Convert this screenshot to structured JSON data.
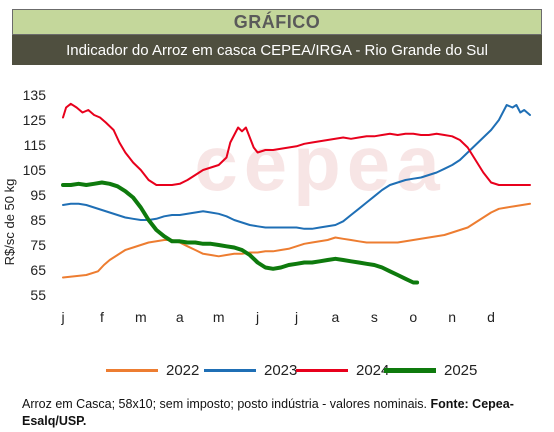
{
  "header": {
    "title": "GRÁFICO",
    "subtitle": "Indicador do Arroz em casca CEPEA/IRGA - Rio Grande do Sul"
  },
  "watermark": "cepea",
  "chart_data": {
    "type": "line",
    "ylabel": "R$/sc de 50 kg",
    "xlabel": "",
    "ylim": [
      55,
      135
    ],
    "xlim": [
      0,
      12
    ],
    "yticks": [
      135,
      125,
      115,
      105,
      95,
      85,
      75,
      65,
      55
    ],
    "x_tick_labels": [
      "j",
      "f",
      "m",
      "a",
      "m",
      "j",
      "j",
      "a",
      "s",
      "o",
      "n",
      "d"
    ],
    "grid": false,
    "legend_position": "bottom",
    "series": [
      {
        "name": "2022",
        "color": "#ed7d31",
        "width": 2,
        "points": [
          [
            0,
            62
          ],
          [
            0.3,
            62.5
          ],
          [
            0.6,
            63
          ],
          [
            0.9,
            64.5
          ],
          [
            1.05,
            67
          ],
          [
            1.2,
            69
          ],
          [
            1.4,
            71
          ],
          [
            1.6,
            73
          ],
          [
            1.8,
            74
          ],
          [
            2.0,
            75
          ],
          [
            2.2,
            76
          ],
          [
            2.4,
            76.5
          ],
          [
            2.6,
            77
          ],
          [
            2.8,
            77
          ],
          [
            3.0,
            76
          ],
          [
            3.2,
            74.5
          ],
          [
            3.4,
            73
          ],
          [
            3.6,
            71.5
          ],
          [
            3.8,
            71
          ],
          [
            4.0,
            70.5
          ],
          [
            4.2,
            71
          ],
          [
            4.4,
            71.5
          ],
          [
            4.6,
            71.5
          ],
          [
            4.8,
            72
          ],
          [
            5.0,
            72
          ],
          [
            5.2,
            72.5
          ],
          [
            5.4,
            72.5
          ],
          [
            5.6,
            73
          ],
          [
            5.8,
            73.5
          ],
          [
            6.0,
            74.5
          ],
          [
            6.2,
            75.5
          ],
          [
            6.4,
            76
          ],
          [
            6.6,
            76.5
          ],
          [
            6.8,
            77
          ],
          [
            7.0,
            78
          ],
          [
            7.2,
            77.5
          ],
          [
            7.4,
            77
          ],
          [
            7.6,
            76.5
          ],
          [
            7.8,
            76
          ],
          [
            8.0,
            76
          ],
          [
            8.2,
            76
          ],
          [
            8.4,
            76
          ],
          [
            8.6,
            76
          ],
          [
            8.8,
            76.5
          ],
          [
            9.0,
            77
          ],
          [
            9.2,
            77.5
          ],
          [
            9.4,
            78
          ],
          [
            9.6,
            78.5
          ],
          [
            9.8,
            79
          ],
          [
            10.0,
            80
          ],
          [
            10.2,
            81
          ],
          [
            10.4,
            82
          ],
          [
            10.6,
            84
          ],
          [
            10.8,
            86
          ],
          [
            11.0,
            88
          ],
          [
            11.2,
            89.5
          ],
          [
            11.4,
            90
          ],
          [
            11.6,
            90.5
          ],
          [
            11.8,
            91
          ],
          [
            12.0,
            91.5
          ]
        ]
      },
      {
        "name": "2023",
        "color": "#1f6fb5",
        "width": 2,
        "points": [
          [
            0,
            91
          ],
          [
            0.2,
            91.5
          ],
          [
            0.4,
            91.5
          ],
          [
            0.6,
            91
          ],
          [
            0.8,
            90
          ],
          [
            1.0,
            89
          ],
          [
            1.2,
            88
          ],
          [
            1.4,
            87
          ],
          [
            1.6,
            86
          ],
          [
            1.8,
            85.5
          ],
          [
            2.0,
            85
          ],
          [
            2.2,
            85
          ],
          [
            2.4,
            85.5
          ],
          [
            2.6,
            86.5
          ],
          [
            2.8,
            87
          ],
          [
            3.0,
            87
          ],
          [
            3.2,
            87.5
          ],
          [
            3.4,
            88
          ],
          [
            3.6,
            88.5
          ],
          [
            3.8,
            88
          ],
          [
            4.0,
            87.5
          ],
          [
            4.2,
            86.5
          ],
          [
            4.4,
            85
          ],
          [
            4.6,
            84
          ],
          [
            4.8,
            83
          ],
          [
            5.0,
            82.5
          ],
          [
            5.2,
            82
          ],
          [
            5.4,
            82
          ],
          [
            5.6,
            82
          ],
          [
            5.8,
            82
          ],
          [
            6.0,
            82
          ],
          [
            6.2,
            81.5
          ],
          [
            6.4,
            81.5
          ],
          [
            6.6,
            82
          ],
          [
            6.8,
            82.5
          ],
          [
            7.0,
            83
          ],
          [
            7.2,
            84.5
          ],
          [
            7.4,
            87
          ],
          [
            7.6,
            89.5
          ],
          [
            7.8,
            92
          ],
          [
            8.0,
            94.5
          ],
          [
            8.2,
            97
          ],
          [
            8.4,
            99
          ],
          [
            8.6,
            100
          ],
          [
            8.8,
            101
          ],
          [
            9.0,
            101.5
          ],
          [
            9.2,
            102
          ],
          [
            9.4,
            103
          ],
          [
            9.6,
            104
          ],
          [
            9.8,
            105.5
          ],
          [
            10.0,
            107
          ],
          [
            10.2,
            109
          ],
          [
            10.4,
            112
          ],
          [
            10.6,
            115
          ],
          [
            10.8,
            118
          ],
          [
            11.0,
            121
          ],
          [
            11.2,
            125
          ],
          [
            11.4,
            131
          ],
          [
            11.55,
            130
          ],
          [
            11.65,
            131
          ],
          [
            11.75,
            128
          ],
          [
            11.85,
            129
          ],
          [
            12.0,
            127
          ]
        ]
      },
      {
        "name": "2024",
        "color": "#e8001c",
        "width": 2,
        "points": [
          [
            0,
            126
          ],
          [
            0.08,
            130
          ],
          [
            0.2,
            131.5
          ],
          [
            0.35,
            130
          ],
          [
            0.5,
            128
          ],
          [
            0.65,
            129
          ],
          [
            0.8,
            127
          ],
          [
            0.95,
            126
          ],
          [
            1.1,
            124
          ],
          [
            1.3,
            121
          ],
          [
            1.45,
            116
          ],
          [
            1.6,
            112
          ],
          [
            1.8,
            108
          ],
          [
            2.0,
            105
          ],
          [
            2.2,
            101
          ],
          [
            2.4,
            99
          ],
          [
            2.6,
            99
          ],
          [
            2.8,
            99
          ],
          [
            3.0,
            99.5
          ],
          [
            3.2,
            101
          ],
          [
            3.4,
            103
          ],
          [
            3.6,
            105
          ],
          [
            3.8,
            106
          ],
          [
            4.0,
            107
          ],
          [
            4.2,
            110
          ],
          [
            4.3,
            116
          ],
          [
            4.4,
            119
          ],
          [
            4.5,
            122
          ],
          [
            4.6,
            120.5
          ],
          [
            4.7,
            122
          ],
          [
            4.8,
            118
          ],
          [
            4.9,
            114
          ],
          [
            5.0,
            112
          ],
          [
            5.2,
            113
          ],
          [
            5.4,
            113
          ],
          [
            5.6,
            113.5
          ],
          [
            5.8,
            114
          ],
          [
            6.0,
            114.5
          ],
          [
            6.2,
            115.5
          ],
          [
            6.4,
            116
          ],
          [
            6.6,
            116.5
          ],
          [
            6.8,
            117
          ],
          [
            7.0,
            117.5
          ],
          [
            7.2,
            118
          ],
          [
            7.4,
            117.5
          ],
          [
            7.6,
            118
          ],
          [
            7.8,
            118.5
          ],
          [
            8.0,
            118.5
          ],
          [
            8.2,
            119
          ],
          [
            8.4,
            119.5
          ],
          [
            8.6,
            119
          ],
          [
            8.8,
            119.5
          ],
          [
            9.0,
            119.5
          ],
          [
            9.2,
            119
          ],
          [
            9.4,
            119
          ],
          [
            9.6,
            119.5
          ],
          [
            9.8,
            119
          ],
          [
            10.0,
            118.5
          ],
          [
            10.2,
            117
          ],
          [
            10.4,
            114
          ],
          [
            10.6,
            109
          ],
          [
            10.8,
            104
          ],
          [
            11.0,
            100
          ],
          [
            11.2,
            99
          ],
          [
            11.4,
            99
          ],
          [
            11.6,
            99
          ],
          [
            11.8,
            99
          ],
          [
            12.0,
            99
          ]
        ]
      },
      {
        "name": "2025",
        "color": "#0e7a0d",
        "width": 4,
        "points": [
          [
            0,
            99
          ],
          [
            0.2,
            99
          ],
          [
            0.4,
            99.5
          ],
          [
            0.6,
            99
          ],
          [
            0.8,
            99.5
          ],
          [
            1.0,
            100
          ],
          [
            1.2,
            99.5
          ],
          [
            1.4,
            98.5
          ],
          [
            1.6,
            96.5
          ],
          [
            1.8,
            94
          ],
          [
            2.0,
            90
          ],
          [
            2.2,
            85
          ],
          [
            2.4,
            81
          ],
          [
            2.6,
            78.5
          ],
          [
            2.8,
            76.5
          ],
          [
            3.0,
            76.5
          ],
          [
            3.2,
            76
          ],
          [
            3.4,
            76
          ],
          [
            3.6,
            75.5
          ],
          [
            3.8,
            75.5
          ],
          [
            4.0,
            75
          ],
          [
            4.2,
            74.5
          ],
          [
            4.4,
            74
          ],
          [
            4.6,
            73
          ],
          [
            4.8,
            71
          ],
          [
            5.0,
            68
          ],
          [
            5.2,
            66
          ],
          [
            5.4,
            65.5
          ],
          [
            5.6,
            66
          ],
          [
            5.8,
            67
          ],
          [
            6.0,
            67.5
          ],
          [
            6.2,
            68
          ],
          [
            6.4,
            68
          ],
          [
            6.6,
            68.5
          ],
          [
            6.8,
            69
          ],
          [
            7.0,
            69.5
          ],
          [
            7.2,
            69
          ],
          [
            7.4,
            68.5
          ],
          [
            7.6,
            68
          ],
          [
            7.8,
            67.5
          ],
          [
            8.0,
            67
          ],
          [
            8.2,
            66
          ],
          [
            8.4,
            64.5
          ],
          [
            8.6,
            63
          ],
          [
            8.8,
            61.5
          ],
          [
            9.0,
            60
          ],
          [
            9.1,
            60
          ]
        ]
      }
    ]
  },
  "footnote": {
    "text": "Arroz em Casca; 58x10; sem imposto; posto indústria - valores nominais.",
    "source": "Fonte: Cepea-Esalq/USP."
  }
}
